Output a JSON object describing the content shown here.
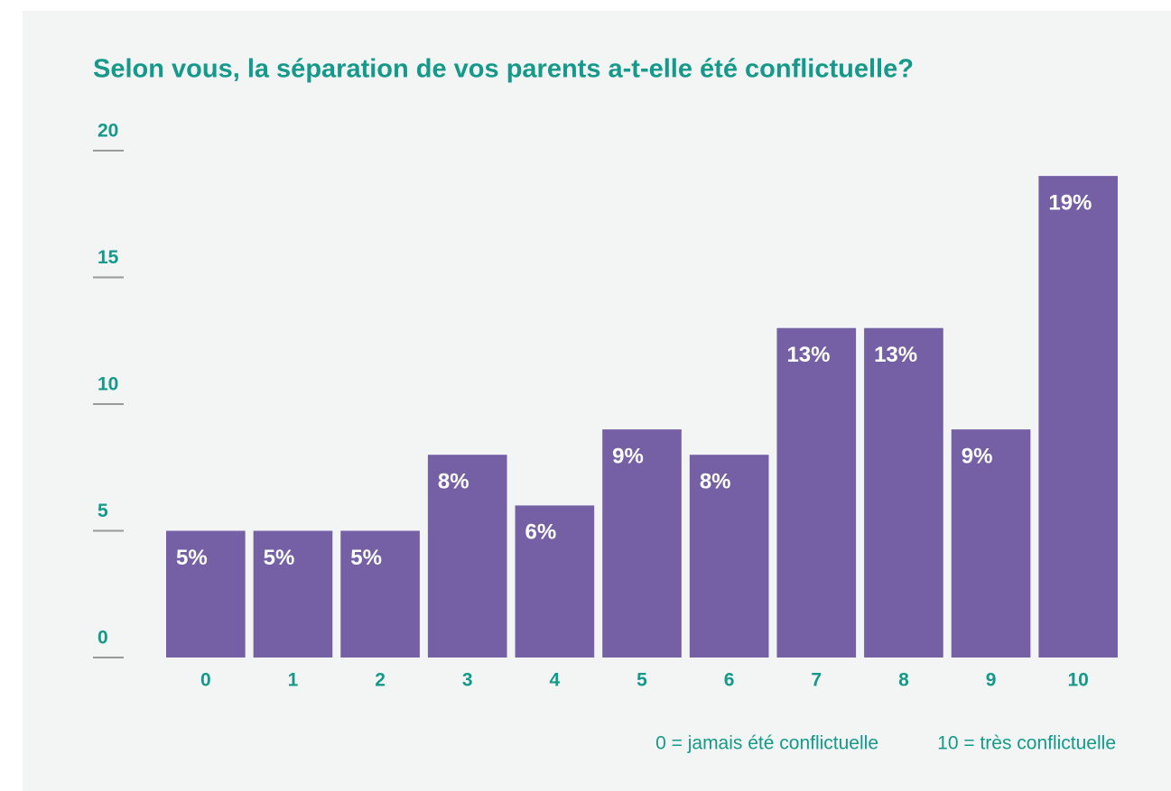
{
  "chart_data": {
    "type": "bar",
    "title": "Selon vous, la séparation de vos parents a-t-elle été conflictuelle?",
    "categories": [
      "0",
      "1",
      "2",
      "3",
      "4",
      "5",
      "6",
      "7",
      "8",
      "9",
      "10"
    ],
    "values": [
      5,
      5,
      5,
      8,
      6,
      9,
      8,
      13,
      13,
      9,
      19
    ],
    "value_labels": [
      "5%",
      "5%",
      "5%",
      "8%",
      "6%",
      "9%",
      "8%",
      "13%",
      "13%",
      "9%",
      "19%"
    ],
    "color": "#7560a6",
    "ylim": [
      0,
      20
    ],
    "yticks": [
      0,
      5,
      10,
      15,
      20
    ],
    "annotations": [
      "0 = jamais été conflictuelle",
      "10 = très conflictuelle"
    ]
  }
}
